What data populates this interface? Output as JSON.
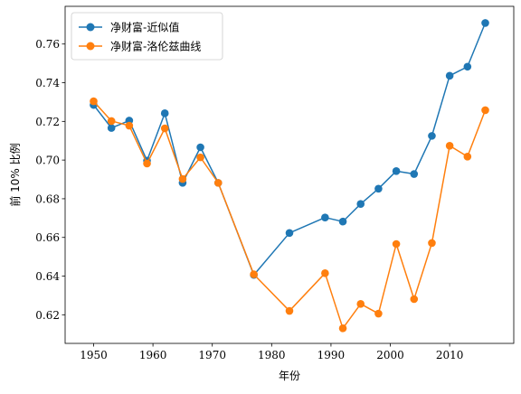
{
  "chart_data": {
    "type": "line",
    "xlabel": "年份",
    "ylabel": "前 10% 比例",
    "xlim": [
      1945.2,
      2020.8
    ],
    "ylim": [
      0.6052,
      0.7795
    ],
    "xticks": [
      1950,
      1960,
      1970,
      1980,
      1990,
      2000,
      2010
    ],
    "yticks": [
      0.62,
      0.64,
      0.66,
      0.68,
      0.7,
      0.72,
      0.74,
      0.76
    ],
    "ytick_labels": [
      "0.62",
      "0.64",
      "0.66",
      "0.68",
      "0.70",
      "0.72",
      "0.74",
      "0.76"
    ],
    "grid": false,
    "legend_position": "upper-left",
    "x": [
      1950,
      1953,
      1956,
      1959,
      1962,
      1965,
      1968,
      1971,
      1977,
      1983,
      1989,
      1992,
      1995,
      1998,
      2001,
      2004,
      2007,
      2010,
      2013,
      2016
    ],
    "series": [
      {
        "name": "净财富-近似值",
        "color": "#1f77b4",
        "values": [
          0.7285,
          0.7166,
          0.7204,
          0.6997,
          0.7242,
          0.6882,
          0.7066,
          0.6882,
          0.6406,
          0.6623,
          0.6703,
          0.6682,
          0.6773,
          0.6852,
          0.6943,
          0.6928,
          0.7125,
          0.7436,
          0.7483,
          0.7709
        ]
      },
      {
        "name": "净财富-洛伦兹曲线",
        "color": "#ff7f0e",
        "values": [
          0.7304,
          0.7202,
          0.7178,
          0.6982,
          0.7164,
          0.6902,
          0.7014,
          0.6882,
          0.6409,
          0.622,
          0.6415,
          0.613,
          0.6256,
          0.6206,
          0.6566,
          0.6281,
          0.6571,
          0.7074,
          0.7018,
          0.7258
        ]
      }
    ]
  }
}
